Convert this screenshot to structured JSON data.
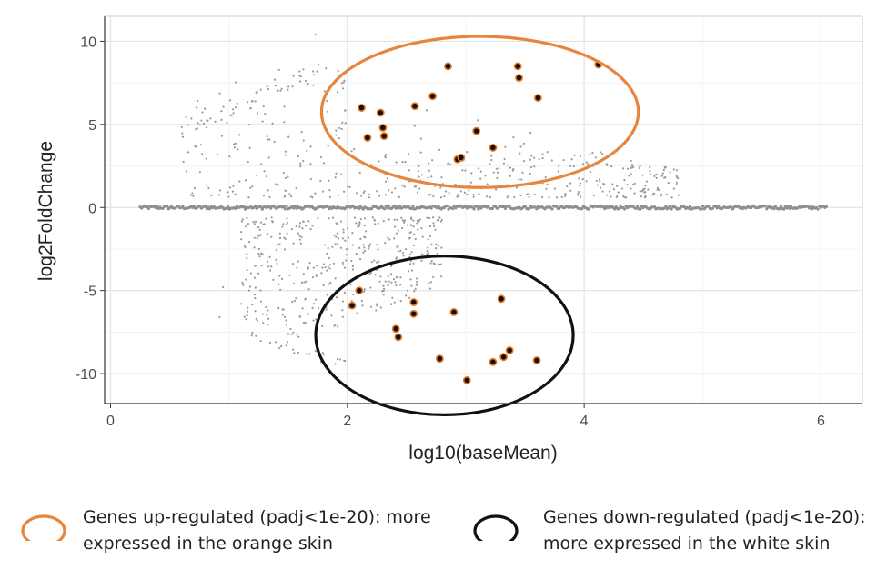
{
  "chart_data": {
    "type": "scatter",
    "xlabel": "log10(baseMean)",
    "ylabel": "log2FoldChange",
    "xlim": [
      -0.05,
      6.35
    ],
    "ylim": [
      -11.8,
      11.5
    ],
    "x_ticks": [
      0,
      2,
      4,
      6
    ],
    "y_ticks": [
      -10,
      -5,
      0,
      5,
      10
    ],
    "grid": true,
    "colors": {
      "background_points": "#9a9a9a",
      "highlight_fill": "#1a0f00",
      "highlight_edge": "#e0792b",
      "up_ellipse": "#e8853d",
      "down_ellipse": "#111111"
    },
    "highlighted_up": [
      {
        "x": 2.12,
        "y": 6.0
      },
      {
        "x": 2.17,
        "y": 4.2
      },
      {
        "x": 2.28,
        "y": 5.7
      },
      {
        "x": 2.3,
        "y": 4.8
      },
      {
        "x": 2.31,
        "y": 4.3
      },
      {
        "x": 2.57,
        "y": 6.1
      },
      {
        "x": 2.72,
        "y": 6.7
      },
      {
        "x": 2.85,
        "y": 8.5
      },
      {
        "x": 2.93,
        "y": 2.9
      },
      {
        "x": 2.96,
        "y": 3.0
      },
      {
        "x": 3.09,
        "y": 4.6
      },
      {
        "x": 3.23,
        "y": 3.6
      },
      {
        "x": 3.44,
        "y": 8.5
      },
      {
        "x": 3.45,
        "y": 7.8
      },
      {
        "x": 3.61,
        "y": 6.6
      },
      {
        "x": 4.12,
        "y": 8.6
      }
    ],
    "highlighted_down": [
      {
        "x": 2.04,
        "y": -5.9
      },
      {
        "x": 2.1,
        "y": -5.0
      },
      {
        "x": 2.41,
        "y": -7.3
      },
      {
        "x": 2.43,
        "y": -7.8
      },
      {
        "x": 2.56,
        "y": -5.7
      },
      {
        "x": 2.56,
        "y": -6.4
      },
      {
        "x": 2.78,
        "y": -9.1
      },
      {
        "x": 2.9,
        "y": -6.3
      },
      {
        "x": 3.01,
        "y": -10.4
      },
      {
        "x": 3.23,
        "y": -9.3
      },
      {
        "x": 3.3,
        "y": -5.5
      },
      {
        "x": 3.32,
        "y": -9.0
      },
      {
        "x": 3.37,
        "y": -8.6
      },
      {
        "x": 3.6,
        "y": -9.2
      }
    ],
    "background_note_values": {
      "zero_band": {
        "y": 0,
        "x_from": 0.25,
        "x_to": 6.05
      },
      "upper_cloud": {
        "x_from": 0.6,
        "x_to": 4.9,
        "y_from": 0.5,
        "y_to": 10.4
      },
      "lower_cloud": {
        "x_from": 0.9,
        "x_to": 2.7,
        "y_from": -0.5,
        "y_to": -10.0
      }
    }
  },
  "legend": {
    "up": {
      "line1": "Genes up-regulated (padj<1e-20): more",
      "line2": "expressed in the orange skin"
    },
    "down": {
      "line1": "Genes down-regulated (padj<1e-20):",
      "line2": "more expressed in the white skin"
    }
  }
}
